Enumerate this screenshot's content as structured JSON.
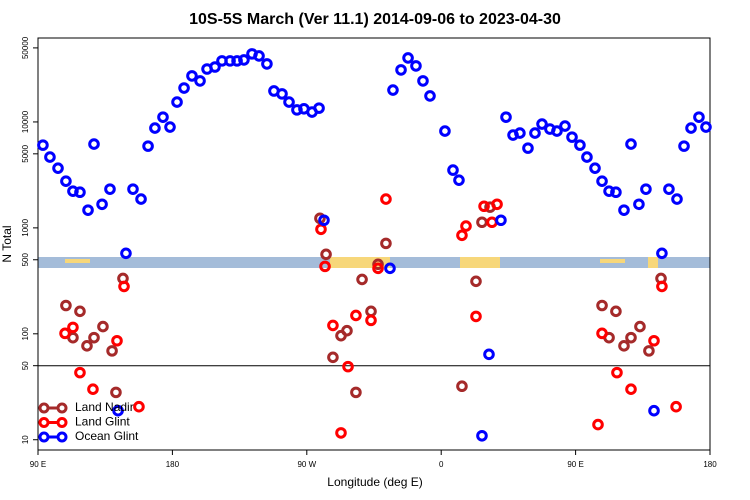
{
  "chart_data": {
    "type": "scatter",
    "title": "10S-5S March (Ver 11.1)   2014-09-06 to 2023-04-30",
    "xlabel": "Longitude (deg E)",
    "ylabel": "N Total",
    "xlim": [
      90,
      540
    ],
    "ylim": [
      8,
      62000
    ],
    "ylog": true,
    "xticks": [
      {
        "value": 90,
        "label": "90 E"
      },
      180,
      {
        "value": 270,
        "label": "90 W"
      },
      {
        "value": 360,
        "label": "0"
      },
      {
        "value": 450,
        "label": "90 E"
      },
      {
        "value": 540,
        "label": "180"
      }
    ],
    "yticks": [
      10,
      50,
      100,
      500,
      1000,
      5000,
      10000,
      50000
    ],
    "reference_line": 50,
    "legend": "lower left",
    "series": [
      {
        "name": "Land Nadir",
        "color": "#a52a2a",
        "x": [
          108.7,
          113.4,
          118.1,
          122.8,
          127.5,
          133.5,
          139.6,
          142.2,
          146.9,
          278.8,
          282.9,
          287.5,
          292.9,
          296.9,
          302.9,
          307.0,
          313.0,
          317.7,
          323.0,
          373.9,
          383.3,
          387.3,
          392.7,
          467.7,
          472.4,
          477.0,
          482.4,
          487.1,
          493.1,
          499.1,
          507.2
        ],
        "values": [
          185,
          92,
          163,
          77,
          92,
          117,
          69,
          28,
          333,
          1230,
          563,
          60,
          96,
          107,
          28,
          326,
          163,
          453,
          714,
          32,
          313,
          1130,
          1570,
          185,
          92,
          163,
          77,
          92,
          117,
          69,
          333
        ]
      },
      {
        "name": "Land Glint",
        "color": "#ff0000",
        "x": [
          108.1,
          113.4,
          118.1,
          126.8,
          142.9,
          147.6,
          157.6,
          279.5,
          282.2,
          287.5,
          292.9,
          297.6,
          302.9,
          313.0,
          317.7,
          323.0,
          373.9,
          376.6,
          383.3,
          388.7,
          394.0,
          397.4,
          465.0,
          467.7,
          477.7,
          487.1,
          502.5,
          507.8,
          517.3
        ],
        "values": [
          101,
          115,
          43,
          30,
          86,
          280,
          20.5,
          970,
          433,
          120,
          11.6,
          49,
          149,
          134,
          415,
          1870,
          851,
          1040,
          146,
          1600,
          1130,
          1670,
          13.9,
          101,
          43,
          30,
          86,
          280,
          20.5
        ]
      },
      {
        "name": "Ocean Glint",
        "color": "#0000ff",
        "x": [
          93.3,
          98.0,
          103.4,
          108.7,
          113.4,
          118.1,
          123.5,
          127.5,
          132.9,
          138.2,
          143.6,
          148.9,
          153.6,
          159.0,
          163.7,
          168.3,
          173.7,
          178.4,
          183.1,
          187.8,
          193.1,
          198.5,
          203.2,
          208.5,
          213.2,
          218.6,
          223.3,
          227.9,
          233.3,
          238.0,
          243.3,
          248.0,
          253.4,
          258.1,
          263.4,
          268.1,
          273.5,
          278.2,
          281.5,
          325.7,
          327.7,
          333.1,
          337.8,
          343.1,
          347.8,
          352.5,
          362.5,
          367.9,
          371.9,
          387.3,
          392.0,
          400.0,
          403.4,
          408.1,
          412.7,
          418.1,
          422.8,
          427.5,
          432.8,
          437.5,
          442.9,
          447.6,
          452.9,
          457.6,
          463.0,
          467.7,
          472.4,
          477.0,
          482.4,
          487.1,
          492.4,
          497.1,
          502.5,
          507.8,
          512.5,
          517.9,
          522.6,
          527.3,
          532.6,
          537.3
        ],
        "values": [
          6040,
          4660,
          3660,
          2760,
          2220,
          2170,
          1470,
          6180,
          1670,
          2320,
          18.8,
          575,
          2320,
          1870,
          5910,
          8750,
          11100,
          8950,
          15400,
          20900,
          27200,
          24400,
          31600,
          33000,
          37700,
          37700,
          37700,
          38500,
          43900,
          42000,
          35300,
          19600,
          18400,
          15400,
          13000,
          13300,
          12400,
          13500,
          1180,
          415,
          20000,
          31000,
          40200,
          33800,
          24400,
          17600,
          8200,
          3510,
          2820,
          10.9,
          64,
          1180,
          11100,
          7520,
          7850,
          5660,
          7850,
          9550,
          8570,
          8200,
          9140,
          7190,
          6040,
          4660,
          3660,
          2760,
          2220,
          2170,
          1470,
          6180,
          1670,
          2320,
          18.8,
          575,
          2320,
          1870,
          5910,
          8750,
          11100,
          8950
        ]
      }
    ]
  }
}
